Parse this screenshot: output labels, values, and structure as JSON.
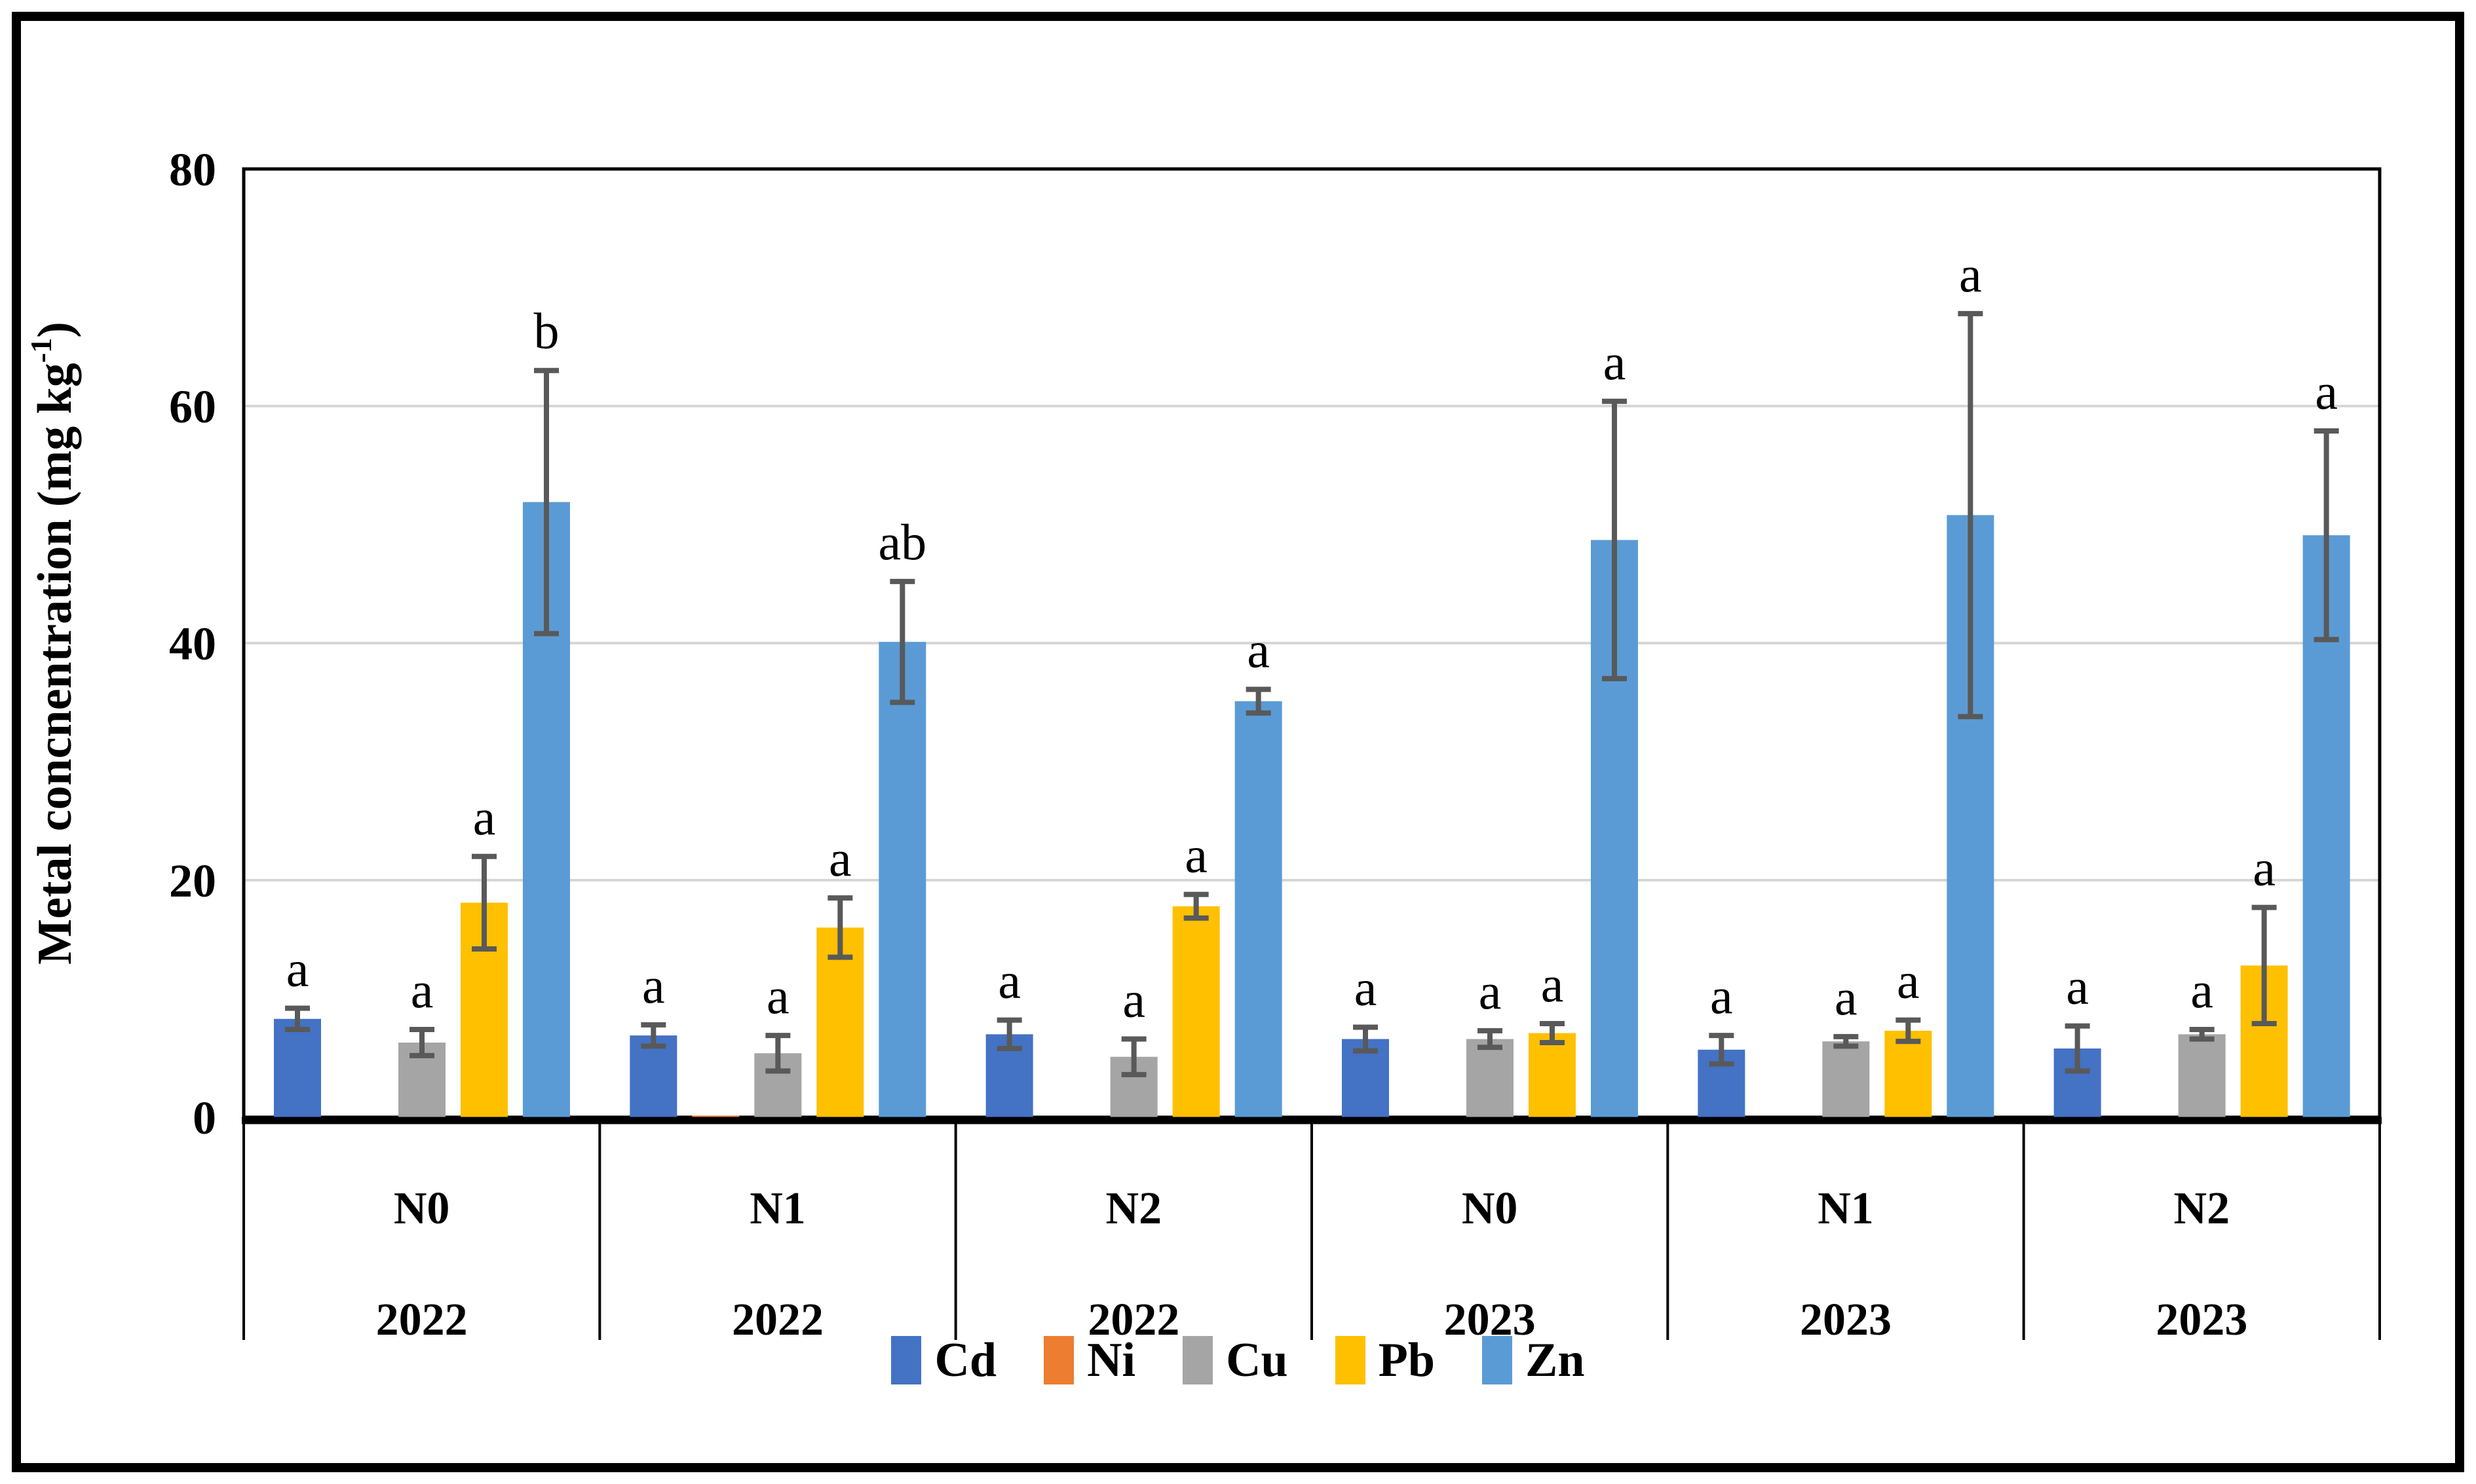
{
  "figure": {
    "background": "#ffffff",
    "border_color": "#000000"
  },
  "chart_data": {
    "type": "bar",
    "title": "",
    "ylabel": "Metal concnentration (mg kg-1)",
    "ylabel_parts": {
      "prefix": "Metal concnentration (mg kg",
      "superscript": "-1",
      "suffix": ")"
    },
    "xlabel": "",
    "ylim": [
      0,
      80
    ],
    "yticks": [
      0,
      20,
      40,
      60,
      80
    ],
    "grid": true,
    "legend_position": "bottom",
    "categories": [
      {
        "treatment": "N0",
        "year": "2022"
      },
      {
        "treatment": "N1",
        "year": "2022"
      },
      {
        "treatment": "N2",
        "year": "2022"
      },
      {
        "treatment": "N0",
        "year": "2023"
      },
      {
        "treatment": "N1",
        "year": "2023"
      },
      {
        "treatment": "N2",
        "year": "2023"
      }
    ],
    "series": [
      {
        "name": "Cd",
        "color": "#4472C4",
        "values": [
          8.3,
          6.9,
          7.0,
          6.6,
          5.7,
          5.8
        ],
        "errors": [
          0.9,
          0.9,
          1.2,
          1.0,
          1.2,
          1.9
        ],
        "letters": [
          "a",
          "a",
          "a",
          "a",
          "a",
          "a"
        ]
      },
      {
        "name": "Ni",
        "color": "#ED7D31",
        "values": [
          0,
          0.1,
          0,
          0,
          0,
          0
        ],
        "errors": [
          0,
          0,
          0,
          0,
          0,
          0
        ],
        "letters": [
          "",
          "",
          "",
          "",
          "",
          ""
        ]
      },
      {
        "name": "Cu",
        "color": "#A5A5A5",
        "values": [
          6.3,
          5.4,
          5.1,
          6.6,
          6.4,
          7.0
        ],
        "errors": [
          1.1,
          1.5,
          1.5,
          0.7,
          0.4,
          0.4
        ],
        "letters": [
          "a",
          "a",
          "a",
          "a",
          "a",
          "a"
        ]
      },
      {
        "name": "Pb",
        "color": "#FFC000",
        "values": [
          18.1,
          16.0,
          17.8,
          7.1,
          7.3,
          12.8
        ],
        "errors": [
          3.9,
          2.5,
          1.0,
          0.8,
          0.9,
          4.9
        ],
        "letters": [
          "a",
          "a",
          "a",
          "a",
          "a",
          "a"
        ]
      },
      {
        "name": "Zn",
        "color": "#5B9BD5",
        "values": [
          51.9,
          40.1,
          35.1,
          48.7,
          50.8,
          49.1
        ],
        "errors": [
          11.1,
          5.1,
          1.0,
          11.7,
          17.0,
          8.8
        ],
        "letters": [
          "b",
          "ab",
          "a",
          "a",
          "a",
          "a"
        ]
      }
    ],
    "error_bar_color": "#595959",
    "gridline_color": "#D6D6D6",
    "axis_color": "#000000",
    "text_color": "#000000"
  }
}
